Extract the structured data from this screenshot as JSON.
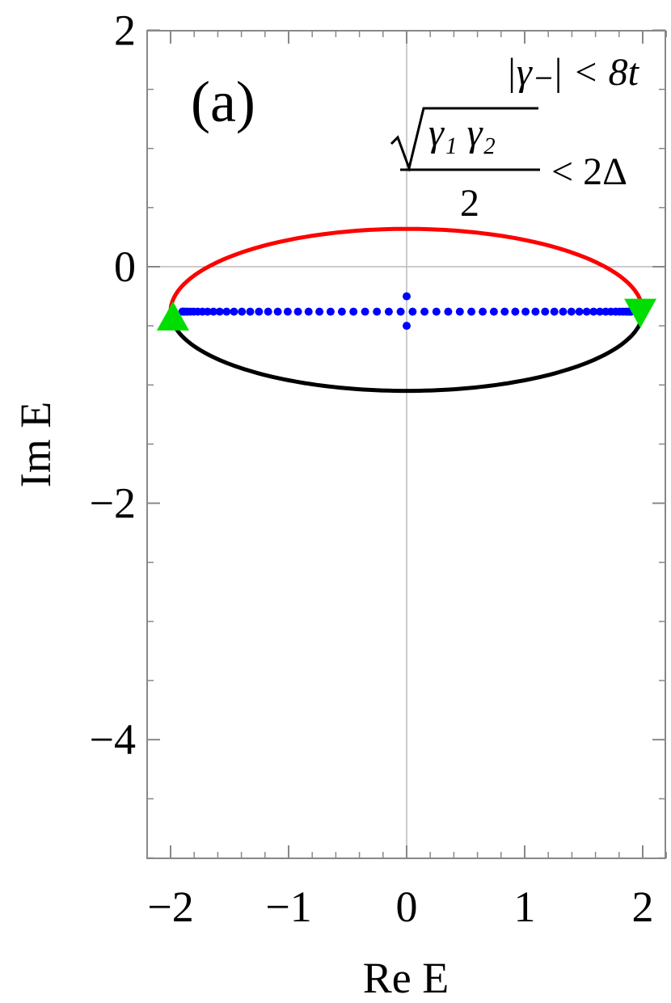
{
  "chart_data": {
    "type": "scatter",
    "panel_label": "(a)",
    "xlabel": "Re E",
    "ylabel": "Im E",
    "xlim": [
      -2.2,
      2.2
    ],
    "ylim": [
      -5,
      2
    ],
    "x_ticks": [
      -2,
      -1,
      0,
      1,
      2
    ],
    "x_tick_labels": [
      "−2",
      "−1",
      "0",
      "1",
      "2"
    ],
    "y_ticks": [
      -4,
      -2,
      0,
      2
    ],
    "y_tick_labels": [
      "−4",
      "−2",
      "0",
      "2"
    ],
    "grid": false,
    "zero_lines": true,
    "annotations": {
      "line1": "|γ₋| < 8t",
      "sqrt_term": "γ₁ γ₂",
      "denominator": "2",
      "rhs": "< 2Δ"
    },
    "colors": {
      "upper_curve": "#ff0000",
      "lower_curve": "#000000",
      "points": "#0000ff",
      "markers": "#00dd00",
      "axes": "#888888",
      "zero_lines": "#bbbbbb"
    },
    "series": [
      {
        "kind": "upper-arc",
        "center": [
          0,
          -0.38
        ],
        "radii": [
          2.0,
          0.7
        ],
        "from_x": -2.0,
        "to_x": 2.0
      },
      {
        "kind": "lower-arc",
        "center": [
          0,
          -0.38
        ],
        "radii": [
          2.0,
          0.67
        ],
        "from_x": -2.0,
        "to_x": 2.0
      },
      {
        "kind": "points-row",
        "y": -0.38,
        "x_from": -1.9,
        "x_to": 1.9,
        "count": 60,
        "extra_points": [
          [
            0.0,
            -0.25
          ],
          [
            0.0,
            -0.5
          ]
        ]
      },
      {
        "kind": "markers",
        "points": [
          {
            "x": -1.98,
            "y": -0.43,
            "shape": "triangle-up"
          },
          {
            "x": 1.98,
            "y": -0.38,
            "shape": "triangle-down"
          }
        ]
      }
    ]
  }
}
